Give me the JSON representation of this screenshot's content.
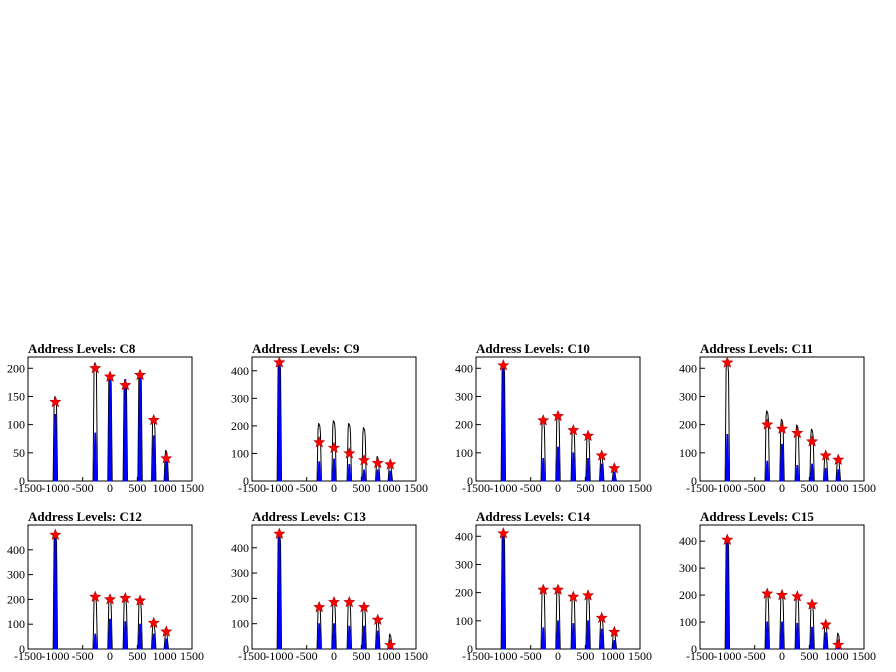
{
  "colors": {
    "outline": "#000000",
    "fill": "#0000ff",
    "marker": "#ff0000"
  },
  "chart_data": [
    {
      "type": "histogram",
      "title": "Address Levels: C8",
      "xlim": [
        -1500,
        1500
      ],
      "ylim": [
        0,
        220
      ],
      "xticks": [
        -1500,
        -1000,
        -500,
        0,
        500,
        1000,
        1500
      ],
      "yticks": [
        0,
        50,
        100,
        150,
        200
      ],
      "peaks": [
        {
          "x": -1000,
          "outline": 150,
          "fill": 118,
          "marker": 140
        },
        {
          "x": -270,
          "outline": 210,
          "fill": 85,
          "marker": 200
        },
        {
          "x": 0,
          "outline": 190,
          "fill": 190,
          "marker": 185
        },
        {
          "x": 280,
          "outline": 180,
          "fill": 180,
          "marker": 170
        },
        {
          "x": 550,
          "outline": 195,
          "fill": 195,
          "marker": 188
        },
        {
          "x": 800,
          "outline": 110,
          "fill": 80,
          "marker": 108
        },
        {
          "x": 1030,
          "outline": 55,
          "fill": 40,
          "marker": 40
        }
      ]
    },
    {
      "type": "histogram",
      "title": "Address Levels: C9",
      "xlim": [
        -1500,
        1500
      ],
      "ylim": [
        0,
        450
      ],
      "xticks": [
        -1500,
        -1000,
        -500,
        0,
        500,
        1000,
        1500
      ],
      "yticks": [
        0,
        100,
        200,
        300,
        400
      ],
      "peaks": [
        {
          "x": -1000,
          "outline": 440,
          "fill": 430,
          "marker": 430
        },
        {
          "x": -270,
          "outline": 210,
          "fill": 70,
          "marker": 140
        },
        {
          "x": 0,
          "outline": 220,
          "fill": 80,
          "marker": 120
        },
        {
          "x": 280,
          "outline": 210,
          "fill": 60,
          "marker": 100
        },
        {
          "x": 550,
          "outline": 195,
          "fill": 40,
          "marker": 75
        },
        {
          "x": 800,
          "outline": 90,
          "fill": 40,
          "marker": 65
        },
        {
          "x": 1030,
          "outline": 70,
          "fill": 35,
          "marker": 60
        }
      ]
    },
    {
      "type": "histogram",
      "title": "Address Levels: C10",
      "xlim": [
        -1500,
        1500
      ],
      "ylim": [
        0,
        440
      ],
      "xticks": [
        -1500,
        -1000,
        -500,
        0,
        500,
        1000,
        1500
      ],
      "yticks": [
        0,
        100,
        200,
        300,
        400
      ],
      "peaks": [
        {
          "x": -1000,
          "outline": 420,
          "fill": 410,
          "marker": 410
        },
        {
          "x": -270,
          "outline": 220,
          "fill": 80,
          "marker": 215
        },
        {
          "x": 0,
          "outline": 240,
          "fill": 120,
          "marker": 230
        },
        {
          "x": 280,
          "outline": 190,
          "fill": 100,
          "marker": 180
        },
        {
          "x": 550,
          "outline": 170,
          "fill": 80,
          "marker": 160
        },
        {
          "x": 800,
          "outline": 95,
          "fill": 60,
          "marker": 90
        },
        {
          "x": 1030,
          "outline": 50,
          "fill": 30,
          "marker": 45
        }
      ]
    },
    {
      "type": "histogram",
      "title": "Address Levels: C11",
      "xlim": [
        -1500,
        1500
      ],
      "ylim": [
        0,
        440
      ],
      "xticks": [
        -1500,
        -1000,
        -500,
        0,
        500,
        1000,
        1500
      ],
      "yticks": [
        0,
        100,
        200,
        300,
        400
      ],
      "peaks": [
        {
          "x": -1000,
          "outline": 420,
          "fill": 165,
          "marker": 420
        },
        {
          "x": -270,
          "outline": 250,
          "fill": 70,
          "marker": 200
        },
        {
          "x": 0,
          "outline": 220,
          "fill": 130,
          "marker": 185
        },
        {
          "x": 280,
          "outline": 200,
          "fill": 55,
          "marker": 170
        },
        {
          "x": 550,
          "outline": 185,
          "fill": 60,
          "marker": 140
        },
        {
          "x": 800,
          "outline": 100,
          "fill": 45,
          "marker": 90
        },
        {
          "x": 1030,
          "outline": 85,
          "fill": 40,
          "marker": 75
        }
      ]
    },
    {
      "type": "histogram",
      "title": "Address Levels: C12",
      "xlim": [
        -1500,
        1500
      ],
      "ylim": [
        0,
        500
      ],
      "xticks": [
        -1500,
        -1000,
        -500,
        0,
        500,
        1000,
        1500
      ],
      "yticks": [
        0,
        100,
        200,
        300,
        400
      ],
      "peaks": [
        {
          "x": -1000,
          "outline": 470,
          "fill": 450,
          "marker": 460
        },
        {
          "x": -270,
          "outline": 220,
          "fill": 60,
          "marker": 210
        },
        {
          "x": 0,
          "outline": 210,
          "fill": 120,
          "marker": 200
        },
        {
          "x": 280,
          "outline": 210,
          "fill": 110,
          "marker": 205
        },
        {
          "x": 550,
          "outline": 200,
          "fill": 100,
          "marker": 195
        },
        {
          "x": 800,
          "outline": 110,
          "fill": 60,
          "marker": 105
        },
        {
          "x": 1030,
          "outline": 75,
          "fill": 40,
          "marker": 70
        }
      ]
    },
    {
      "type": "histogram",
      "title": "Address Levels: C13",
      "xlim": [
        -1500,
        1500
      ],
      "ylim": [
        0,
        490
      ],
      "xticks": [
        -1500,
        -1000,
        -500,
        0,
        500,
        1000,
        1500
      ],
      "yticks": [
        0,
        100,
        200,
        300,
        400
      ],
      "peaks": [
        {
          "x": -1000,
          "outline": 460,
          "fill": 450,
          "marker": 455
        },
        {
          "x": -270,
          "outline": 180,
          "fill": 100,
          "marker": 165
        },
        {
          "x": 0,
          "outline": 195,
          "fill": 100,
          "marker": 185
        },
        {
          "x": 280,
          "outline": 195,
          "fill": 90,
          "marker": 185
        },
        {
          "x": 550,
          "outline": 175,
          "fill": 90,
          "marker": 165
        },
        {
          "x": 800,
          "outline": 120,
          "fill": 70,
          "marker": 115
        },
        {
          "x": 1030,
          "outline": 60,
          "fill": 20,
          "marker": 15
        }
      ]
    },
    {
      "type": "histogram",
      "title": "Address Levels: C14",
      "xlim": [
        -1500,
        1500
      ],
      "ylim": [
        0,
        440
      ],
      "xticks": [
        -1500,
        -1000,
        -500,
        0,
        500,
        1000,
        1500
      ],
      "yticks": [
        0,
        100,
        200,
        300,
        400
      ],
      "peaks": [
        {
          "x": -1000,
          "outline": 420,
          "fill": 405,
          "marker": 410
        },
        {
          "x": -270,
          "outline": 220,
          "fill": 75,
          "marker": 210
        },
        {
          "x": 0,
          "outline": 220,
          "fill": 100,
          "marker": 210
        },
        {
          "x": 280,
          "outline": 195,
          "fill": 90,
          "marker": 185
        },
        {
          "x": 550,
          "outline": 195,
          "fill": 100,
          "marker": 190
        },
        {
          "x": 800,
          "outline": 120,
          "fill": 70,
          "marker": 110
        },
        {
          "x": 1030,
          "outline": 70,
          "fill": 30,
          "marker": 60
        }
      ]
    },
    {
      "type": "histogram",
      "title": "Address Levels: C15",
      "xlim": [
        -1500,
        1500
      ],
      "ylim": [
        0,
        460
      ],
      "xticks": [
        -1500,
        -1000,
        -500,
        0,
        500,
        1000,
        1500
      ],
      "yticks": [
        0,
        100,
        200,
        300,
        400
      ],
      "peaks": [
        {
          "x": -1000,
          "outline": 420,
          "fill": 405,
          "marker": 405
        },
        {
          "x": -270,
          "outline": 210,
          "fill": 100,
          "marker": 205
        },
        {
          "x": 0,
          "outline": 210,
          "fill": 100,
          "marker": 200
        },
        {
          "x": 280,
          "outline": 205,
          "fill": 95,
          "marker": 195
        },
        {
          "x": 550,
          "outline": 175,
          "fill": 80,
          "marker": 165
        },
        {
          "x": 800,
          "outline": 95,
          "fill": 60,
          "marker": 90
        },
        {
          "x": 1030,
          "outline": 60,
          "fill": 20,
          "marker": 15
        }
      ]
    }
  ]
}
